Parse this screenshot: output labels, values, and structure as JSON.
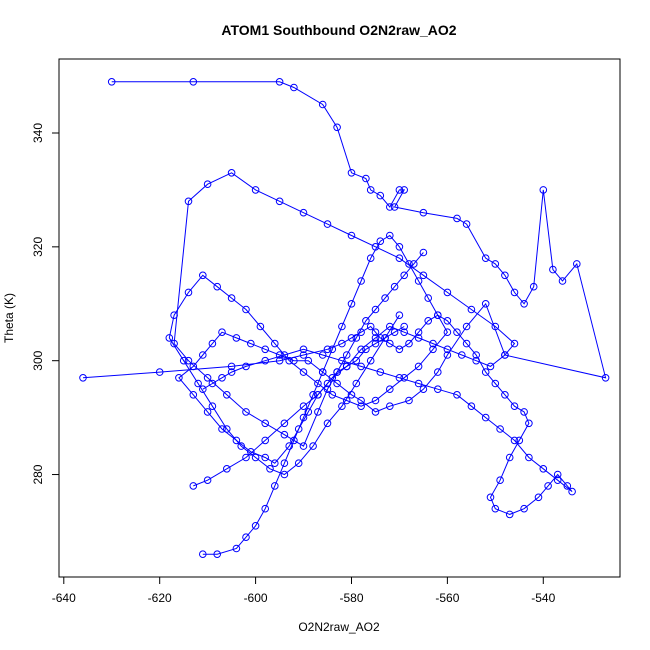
{
  "chart_data": {
    "type": "line",
    "title": "ATOM1 Southbound O2N2raw_AO2",
    "xlabel": "O2N2raw_AO2",
    "ylabel": "Theta (K)",
    "xlim": [
      -641,
      -524
    ],
    "ylim": [
      262,
      353
    ],
    "x_ticks": [
      -640,
      -620,
      -600,
      -580,
      -560,
      -540
    ],
    "y_ticks": [
      280,
      300,
      320,
      340
    ],
    "grid": false,
    "legend": "none",
    "marker": "open-circle",
    "line_color": "#0000ff",
    "series": [
      {
        "x": [
          -630,
          -613,
          -595,
          -592,
          -586,
          -583,
          -580,
          -577,
          -576,
          -574,
          -572,
          -570,
          -569,
          -571,
          -565,
          -558,
          -556,
          -552,
          -550,
          -548,
          -546,
          -544,
          -542,
          -540,
          -538,
          -536,
          -533,
          -527,
          -548,
          -552,
          -556,
          -560,
          -562,
          -565,
          -568,
          -572,
          -575,
          -578,
          -580,
          -583,
          -586,
          -589,
          -592,
          -595,
          -598,
          -601,
          -604,
          -607,
          -609,
          -611,
          -613,
          -616,
          -613,
          -610,
          -607,
          -604,
          -601,
          -598,
          -596,
          -593,
          -591,
          -589,
          -587,
          -585,
          -583,
          -581,
          -579,
          -577,
          -575,
          -573,
          -571,
          -569
        ],
        "y": [
          349,
          349,
          349,
          348,
          345,
          341,
          333,
          332,
          330,
          329,
          327,
          330,
          330,
          327,
          326,
          325,
          324,
          318,
          317,
          315,
          312,
          310,
          313,
          330,
          316,
          314,
          317,
          297,
          301,
          310,
          306,
          301,
          298,
          295,
          293,
          292,
          291,
          293,
          294,
          296,
          298,
          300,
          300,
          301,
          302,
          303,
          304,
          305,
          303,
          301,
          299,
          297,
          294,
          291,
          288,
          286,
          284,
          283,
          282,
          285,
          288,
          291,
          294,
          296,
          298,
          299,
          300,
          302,
          303,
          304,
          305,
          306
        ]
      },
      {
        "x": [
          -636,
          -620,
          -605,
          -595,
          -590,
          -585,
          -582,
          -580,
          -578,
          -576,
          -575,
          -574,
          -572,
          -570,
          -568,
          -566,
          -564,
          -562,
          -560,
          -558,
          -556,
          -554,
          -552,
          -550,
          -548,
          -546,
          -544,
          -543,
          -545,
          -547,
          -549,
          -551,
          -550,
          -547,
          -544,
          -541,
          -539,
          -537,
          -535,
          -534,
          -537,
          -540,
          -543,
          -546,
          -549,
          -552,
          -555,
          -558,
          -562,
          -566,
          -570,
          -574,
          -578,
          -582,
          -586,
          -590,
          -594,
          -598,
          -602,
          -605,
          -607,
          -609,
          -611
        ],
        "y": [
          297,
          298,
          299,
          300,
          301,
          302,
          303,
          304,
          305,
          306,
          305,
          304,
          303,
          302,
          303,
          305,
          307,
          308,
          307,
          305,
          303,
          301,
          298,
          296,
          294,
          292,
          291,
          289,
          286,
          283,
          279,
          276,
          274,
          273,
          274,
          276,
          278,
          280,
          278,
          277,
          279,
          281,
          283,
          286,
          288,
          290,
          292,
          294,
          295,
          296,
          297,
          298,
          299,
          300,
          301,
          302,
          301,
          300,
          299,
          298,
          297,
          296,
          295
        ]
      },
      {
        "x": [
          -611,
          -608,
          -604,
          -602,
          -600,
          -598,
          -596,
          -594,
          -592,
          -590,
          -588,
          -586,
          -584,
          -582,
          -580,
          -578,
          -576,
          -574,
          -572,
          -570,
          -568,
          -566,
          -564,
          -562,
          -560,
          -563,
          -566,
          -569,
          -572,
          -575,
          -578,
          -581,
          -584,
          -587,
          -590,
          -593,
          -596,
          -599,
          -602,
          -605,
          -608,
          -611,
          -614,
          -617,
          -618,
          -615,
          -612,
          -609,
          -606,
          -603,
          -600,
          -597,
          -594,
          -591,
          -588,
          -585,
          -582,
          -579,
          -576,
          -573,
          -570
        ],
        "y": [
          266,
          266,
          267,
          269,
          271,
          274,
          278,
          282,
          286,
          290,
          294,
          298,
          302,
          306,
          310,
          314,
          318,
          321,
          322,
          320,
          317,
          314,
          311,
          308,
          305,
          302,
          299,
          297,
          295,
          293,
          292,
          293,
          294,
          296,
          298,
          300,
          303,
          306,
          309,
          311,
          313,
          315,
          312,
          308,
          304,
          300,
          296,
          292,
          288,
          285,
          283,
          281,
          280,
          282,
          285,
          289,
          292,
          296,
          300,
          304,
          308
        ]
      },
      {
        "x": [
          -613,
          -610,
          -606,
          -602,
          -598,
          -594,
          -590,
          -587,
          -584,
          -581,
          -578,
          -575,
          -572,
          -569,
          -566,
          -563,
          -560,
          -557,
          -554,
          -551,
          -548,
          -546,
          -550,
          -555,
          -560,
          -565,
          -570,
          -575,
          -580,
          -585,
          -590,
          -595,
          -600,
          -605,
          -610,
          -614,
          -617,
          -614,
          -610,
          -606,
          -602,
          -598,
          -594,
          -590,
          -587,
          -585,
          -583,
          -581,
          -579,
          -577,
          -575,
          -573,
          -571,
          -569,
          -567,
          -565
        ],
        "y": [
          278,
          279,
          281,
          283,
          286,
          289,
          292,
          294,
          297,
          299,
          302,
          304,
          306,
          305,
          304,
          303,
          302,
          301,
          300,
          299,
          301,
          303,
          306,
          309,
          312,
          315,
          318,
          320,
          322,
          324,
          326,
          328,
          330,
          333,
          331,
          328,
          303,
          300,
          297,
          294,
          291,
          289,
          287,
          285,
          291,
          295,
          298,
          301,
          304,
          307,
          309,
          311,
          313,
          315,
          317,
          319
        ]
      }
    ]
  }
}
